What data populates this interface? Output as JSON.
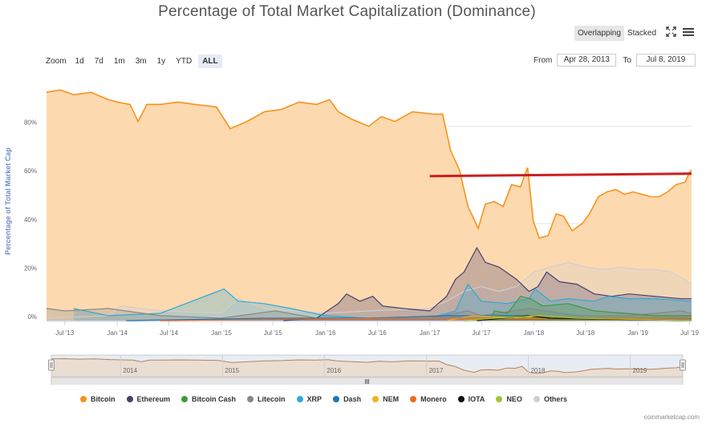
{
  "header": {
    "title": "Percentage of Total Market Capitalization (Dominance)",
    "overlapping_label": "Overlapping",
    "stacked_label": "Stacked"
  },
  "zoom": {
    "label": "Zoom",
    "buttons": [
      "1d",
      "7d",
      "1m",
      "3m",
      "1y",
      "YTD",
      "ALL"
    ],
    "active": "ALL"
  },
  "range": {
    "from_label": "From",
    "from_value": "Apr 28, 2013",
    "to_label": "To",
    "to_value": "Jul 8, 2019"
  },
  "credit": "coinmarketcap.com",
  "colors": {
    "bitcoin": "#f7931a",
    "bitcoin_fill": "#fdd9b0",
    "ethereum": "#45406e",
    "bitcoin_cash": "#3d9a3d",
    "litecoin": "#888888",
    "xrp": "#2fa8d8",
    "dash": "#1c75bc",
    "nem": "#f0b41c",
    "monero": "#ee6a1d",
    "iota": "#111111",
    "neo": "#a3c630",
    "others": "#cfcfcf",
    "trendline": "#cc1f1f"
  },
  "chart_data": {
    "type": "area",
    "ylabel": "Percentage of Total Market Cap",
    "ylim": [
      0,
      100
    ],
    "yticks": [
      0,
      20,
      40,
      60,
      80
    ],
    "ytick_labels": [
      "0%",
      "20%",
      "40%",
      "60%",
      "80%"
    ],
    "xlim": [
      "2013-04-28",
      "2019-07-08"
    ],
    "xtick_labels": [
      {
        "date": "2013-07-01",
        "label": "Jul '13"
      },
      {
        "date": "2014-01-01",
        "label": "Jan '14"
      },
      {
        "date": "2014-07-01",
        "label": "Jul '14"
      },
      {
        "date": "2015-01-01",
        "label": "Jan '15"
      },
      {
        "date": "2015-07-01",
        "label": "Jul '15"
      },
      {
        "date": "2016-01-01",
        "label": "Jan '16"
      },
      {
        "date": "2016-07-01",
        "label": "Jul '16"
      },
      {
        "date": "2017-01-01",
        "label": "Jan '17"
      },
      {
        "date": "2017-07-01",
        "label": "Jul '17"
      },
      {
        "date": "2018-01-01",
        "label": "Jan '18"
      },
      {
        "date": "2018-07-01",
        "label": "Jul '18"
      },
      {
        "date": "2019-01-01",
        "label": "Jan '19"
      },
      {
        "date": "2019-07-01",
        "label": "Jul '19"
      }
    ],
    "navigator_years": [
      "2014",
      "2015",
      "2016",
      "2017",
      "2018",
      "2019"
    ],
    "legend_position": "bottom",
    "grid": true,
    "series": [
      {
        "key": "bitcoin",
        "name": "Bitcoin",
        "points": [
          [
            "2013-04-28",
            94
          ],
          [
            "2013-06-15",
            95
          ],
          [
            "2013-08-01",
            93
          ],
          [
            "2013-10-01",
            94
          ],
          [
            "2013-12-01",
            91
          ],
          [
            "2014-01-01",
            90
          ],
          [
            "2014-02-15",
            89
          ],
          [
            "2014-03-15",
            82
          ],
          [
            "2014-04-15",
            89
          ],
          [
            "2014-06-01",
            89
          ],
          [
            "2014-08-01",
            90
          ],
          [
            "2014-10-01",
            89
          ],
          [
            "2014-12-15",
            88
          ],
          [
            "2015-02-01",
            79
          ],
          [
            "2015-04-01",
            82
          ],
          [
            "2015-06-01",
            86
          ],
          [
            "2015-08-01",
            87
          ],
          [
            "2015-10-01",
            90
          ],
          [
            "2015-12-01",
            89
          ],
          [
            "2016-01-15",
            91
          ],
          [
            "2016-02-15",
            86
          ],
          [
            "2016-04-01",
            83
          ],
          [
            "2016-06-01",
            80
          ],
          [
            "2016-07-15",
            84
          ],
          [
            "2016-09-01",
            82
          ],
          [
            "2016-11-01",
            86
          ],
          [
            "2017-01-15",
            85
          ],
          [
            "2017-02-15",
            85
          ],
          [
            "2017-03-15",
            70
          ],
          [
            "2017-04-15",
            62
          ],
          [
            "2017-05-15",
            47
          ],
          [
            "2017-06-20",
            38
          ],
          [
            "2017-07-15",
            48
          ],
          [
            "2017-08-15",
            49
          ],
          [
            "2017-09-15",
            47
          ],
          [
            "2017-10-15",
            56
          ],
          [
            "2017-11-15",
            55
          ],
          [
            "2017-12-10",
            63
          ],
          [
            "2017-12-30",
            41
          ],
          [
            "2018-01-20",
            34
          ],
          [
            "2018-02-20",
            35
          ],
          [
            "2018-03-20",
            44
          ],
          [
            "2018-04-15",
            43
          ],
          [
            "2018-05-15",
            37
          ],
          [
            "2018-06-20",
            40
          ],
          [
            "2018-07-15",
            44
          ],
          [
            "2018-08-15",
            51
          ],
          [
            "2018-09-15",
            53
          ],
          [
            "2018-10-15",
            54
          ],
          [
            "2018-11-15",
            52
          ],
          [
            "2018-12-15",
            53
          ],
          [
            "2019-01-15",
            52
          ],
          [
            "2019-02-15",
            51
          ],
          [
            "2019-03-15",
            51
          ],
          [
            "2019-04-15",
            53
          ],
          [
            "2019-05-15",
            56
          ],
          [
            "2019-06-15",
            57
          ],
          [
            "2019-07-01",
            61
          ],
          [
            "2019-07-08",
            62
          ]
        ]
      },
      {
        "key": "others",
        "name": "Others",
        "points": [
          [
            "2013-04-28",
            1
          ],
          [
            "2013-12-01",
            2
          ],
          [
            "2014-01-15",
            6
          ],
          [
            "2014-06-01",
            4
          ],
          [
            "2015-01-01",
            3
          ],
          [
            "2015-03-01",
            9
          ],
          [
            "2015-06-01",
            5
          ],
          [
            "2016-01-01",
            3
          ],
          [
            "2016-06-01",
            4
          ],
          [
            "2017-01-01",
            5
          ],
          [
            "2017-03-01",
            8
          ],
          [
            "2017-05-01",
            12
          ],
          [
            "2017-07-01",
            14
          ],
          [
            "2017-09-01",
            12
          ],
          [
            "2017-11-01",
            14
          ],
          [
            "2018-01-01",
            20
          ],
          [
            "2018-03-01",
            22
          ],
          [
            "2018-05-01",
            24
          ],
          [
            "2018-07-01",
            22
          ],
          [
            "2018-09-01",
            21
          ],
          [
            "2018-11-01",
            22
          ],
          [
            "2019-01-01",
            21
          ],
          [
            "2019-03-01",
            21
          ],
          [
            "2019-05-01",
            20
          ],
          [
            "2019-07-08",
            15
          ]
        ]
      },
      {
        "key": "ethereum",
        "name": "Ethereum",
        "points": [
          [
            "2015-08-07",
            0
          ],
          [
            "2015-12-01",
            1
          ],
          [
            "2016-02-15",
            7
          ],
          [
            "2016-03-15",
            11
          ],
          [
            "2016-05-01",
            8
          ],
          [
            "2016-06-15",
            10
          ],
          [
            "2016-07-20",
            6
          ],
          [
            "2016-10-01",
            5
          ],
          [
            "2017-01-01",
            4
          ],
          [
            "2017-03-01",
            10
          ],
          [
            "2017-04-01",
            17
          ],
          [
            "2017-05-01",
            20
          ],
          [
            "2017-06-15",
            30
          ],
          [
            "2017-07-15",
            24
          ],
          [
            "2017-09-01",
            22
          ],
          [
            "2017-11-01",
            17
          ],
          [
            "2017-12-15",
            12
          ],
          [
            "2018-01-15",
            14
          ],
          [
            "2018-02-15",
            20
          ],
          [
            "2018-04-01",
            16
          ],
          [
            "2018-06-01",
            15
          ],
          [
            "2018-08-01",
            11
          ],
          [
            "2018-10-01",
            10
          ],
          [
            "2018-12-01",
            11
          ],
          [
            "2019-03-01",
            10
          ],
          [
            "2019-06-01",
            9
          ],
          [
            "2019-07-08",
            9
          ]
        ]
      },
      {
        "key": "xrp",
        "name": "XRP",
        "points": [
          [
            "2013-08-01",
            5
          ],
          [
            "2013-12-01",
            2
          ],
          [
            "2014-06-01",
            3
          ],
          [
            "2015-01-10",
            13
          ],
          [
            "2015-03-01",
            8
          ],
          [
            "2015-06-01",
            7
          ],
          [
            "2015-09-01",
            5
          ],
          [
            "2016-01-01",
            2
          ],
          [
            "2016-06-01",
            1
          ],
          [
            "2017-01-01",
            1
          ],
          [
            "2017-04-01",
            4
          ],
          [
            "2017-05-15",
            15
          ],
          [
            "2017-07-01",
            8
          ],
          [
            "2017-10-01",
            7
          ],
          [
            "2017-12-15",
            9
          ],
          [
            "2018-01-05",
            13
          ],
          [
            "2018-03-01",
            8
          ],
          [
            "2018-05-01",
            9
          ],
          [
            "2018-08-01",
            8
          ],
          [
            "2018-09-20",
            10
          ],
          [
            "2018-12-01",
            9
          ],
          [
            "2019-03-01",
            9
          ],
          [
            "2019-07-08",
            8
          ]
        ]
      },
      {
        "key": "litecoin",
        "name": "Litecoin",
        "points": [
          [
            "2013-04-28",
            5
          ],
          [
            "2013-07-01",
            4
          ],
          [
            "2013-12-01",
            5
          ],
          [
            "2014-06-01",
            2
          ],
          [
            "2015-01-01",
            1
          ],
          [
            "2015-07-10",
            4
          ],
          [
            "2015-12-01",
            1
          ],
          [
            "2016-06-01",
            1
          ],
          [
            "2017-01-01",
            1
          ],
          [
            "2017-05-15",
            4
          ],
          [
            "2017-07-01",
            2
          ],
          [
            "2017-12-15",
            5
          ],
          [
            "2018-06-01",
            2
          ],
          [
            "2018-12-01",
            2
          ],
          [
            "2019-06-01",
            4
          ],
          [
            "2019-07-08",
            3
          ]
        ]
      },
      {
        "key": "bitcoin_cash",
        "name": "Bitcoin Cash",
        "points": [
          [
            "2017-08-01",
            0
          ],
          [
            "2017-08-15",
            4
          ],
          [
            "2017-10-01",
            3
          ],
          [
            "2017-11-15",
            10
          ],
          [
            "2017-12-20",
            9
          ],
          [
            "2018-02-01",
            6
          ],
          [
            "2018-05-01",
            7
          ],
          [
            "2018-08-01",
            4
          ],
          [
            "2018-11-15",
            3
          ],
          [
            "2019-03-01",
            2
          ],
          [
            "2019-07-08",
            2
          ]
        ]
      },
      {
        "key": "dash",
        "name": "Dash",
        "points": [
          [
            "2014-02-01",
            0
          ],
          [
            "2015-06-01",
            1
          ],
          [
            "2016-06-01",
            1
          ],
          [
            "2017-03-01",
            2
          ],
          [
            "2017-06-01",
            2
          ],
          [
            "2017-12-01",
            2
          ],
          [
            "2018-06-01",
            1
          ],
          [
            "2019-07-08",
            1
          ]
        ]
      },
      {
        "key": "nem",
        "name": "NEM",
        "points": [
          [
            "2017-03-01",
            0
          ],
          [
            "2017-06-01",
            2
          ],
          [
            "2017-12-01",
            1
          ],
          [
            "2018-01-10",
            2
          ],
          [
            "2018-06-01",
            1
          ],
          [
            "2019-07-08",
            0
          ]
        ]
      },
      {
        "key": "monero",
        "name": "Monero",
        "points": [
          [
            "2014-06-01",
            0
          ],
          [
            "2016-09-01",
            1
          ],
          [
            "2017-06-01",
            1
          ],
          [
            "2018-06-01",
            1
          ],
          [
            "2019-07-08",
            1
          ]
        ]
      },
      {
        "key": "iota",
        "name": "IOTA",
        "points": [
          [
            "2017-06-15",
            0
          ],
          [
            "2017-12-10",
            2
          ],
          [
            "2018-03-01",
            1
          ],
          [
            "2019-07-08",
            0
          ]
        ]
      },
      {
        "key": "neo",
        "name": "NEO",
        "points": [
          [
            "2017-05-01",
            0
          ],
          [
            "2017-08-15",
            1
          ],
          [
            "2018-01-15",
            2
          ],
          [
            "2018-06-01",
            1
          ],
          [
            "2019-07-08",
            0
          ]
        ]
      }
    ],
    "trendline": {
      "points": [
        [
          "2017-01-01",
          59.5
        ],
        [
          "2019-07-08",
          60.5
        ]
      ]
    }
  }
}
